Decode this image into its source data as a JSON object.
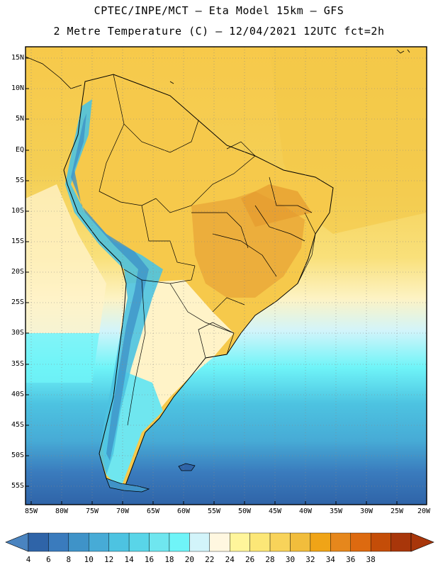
{
  "title": {
    "line1": "CPTEC/INPE/MCT –  Eta Model 15km – GFS",
    "line2": "2 Metre Temperature (C) – 12/04/2021 12UTC fct=2h"
  },
  "lat_labels": [
    "15N",
    "10N",
    "5N",
    "EQ",
    "5S",
    "10S",
    "15S",
    "20S",
    "25S",
    "30S",
    "35S",
    "40S",
    "45S",
    "50S",
    "55S"
  ],
  "lon_labels": [
    "85W",
    "80W",
    "75W",
    "70W",
    "65W",
    "60W",
    "55W",
    "50W",
    "45W",
    "40W",
    "35W",
    "30W",
    "25W",
    "20W"
  ],
  "colorbar": {
    "labels": [
      "4",
      "6",
      "8",
      "10",
      "12",
      "14",
      "16",
      "18",
      "20",
      "22",
      "24",
      "26",
      "28",
      "30",
      "32",
      "34",
      "36",
      "38"
    ],
    "colors": [
      "#2f64a8",
      "#3a7bbd",
      "#3f93c8",
      "#47abd6",
      "#4dc3e1",
      "#59d5e8",
      "#6fe6ef",
      "#6ff4f8",
      "#d2f4fa",
      "#fff7e0",
      "#fff59b",
      "#fce777",
      "#f8d35a",
      "#f1bd3c",
      "#f0a417",
      "#e6871c",
      "#dd6a10",
      "#c44d08",
      "#a8360a"
    ]
  },
  "map": {
    "region": "South America",
    "variable": "2 Metre Temperature",
    "units": "C"
  }
}
